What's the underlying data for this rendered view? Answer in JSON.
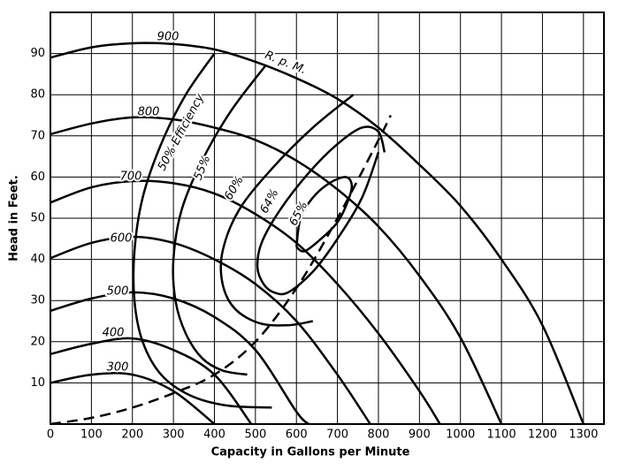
{
  "chart_data": {
    "type": "line",
    "xlabel": "Capacity in Gallons per Minute",
    "ylabel": "Head in Feet.",
    "xlim": [
      0,
      1350
    ],
    "ylim": [
      0,
      100
    ],
    "xticks": [
      0,
      100,
      200,
      300,
      400,
      500,
      600,
      700,
      800,
      900,
      1000,
      1100,
      1200,
      1300
    ],
    "yticks": [
      10,
      20,
      30,
      40,
      50,
      60,
      70,
      80,
      90
    ],
    "grid": true,
    "annotation": "R. p. M.",
    "series": [
      {
        "name": "900",
        "color": "#000000",
        "x": [
          0,
          100,
          200,
          300,
          400,
          500,
          600,
          700,
          800,
          900,
          1000,
          1100,
          1200,
          1300
        ],
        "values": [
          89,
          91.5,
          92.5,
          92.3,
          91,
          88,
          84,
          79,
          72,
          63,
          53,
          40,
          24,
          0
        ]
      },
      {
        "name": "800",
        "color": "#000000",
        "x": [
          0,
          100,
          200,
          300,
          400,
          500,
          600,
          700,
          800,
          900,
          1000,
          1100
        ],
        "values": [
          70.4,
          73,
          74.5,
          74,
          72,
          69,
          64,
          57,
          48,
          36,
          21,
          0
        ]
      },
      {
        "name": "700",
        "color": "#000000",
        "x": [
          0,
          100,
          200,
          300,
          400,
          500,
          600,
          700,
          800,
          900,
          950
        ],
        "values": [
          53.8,
          57.5,
          59,
          58.5,
          56,
          51,
          44,
          34,
          22,
          8,
          0
        ]
      },
      {
        "name": "600",
        "color": "#000000",
        "x": [
          0,
          100,
          200,
          300,
          400,
          500,
          600,
          700,
          780
        ],
        "values": [
          40.3,
          44,
          45.5,
          44,
          40,
          34,
          25,
          12,
          0
        ]
      },
      {
        "name": "500",
        "color": "#000000",
        "x": [
          0,
          100,
          200,
          300,
          400,
          500,
          600,
          630
        ],
        "values": [
          27.5,
          30.5,
          32,
          30.5,
          26,
          18,
          3,
          0
        ]
      },
      {
        "name": "400",
        "color": "#000000",
        "x": [
          0,
          100,
          200,
          300,
          400,
          490
        ],
        "values": [
          17,
          19.5,
          20.8,
          18,
          12,
          0
        ]
      },
      {
        "name": "300",
        "color": "#000000",
        "x": [
          0,
          100,
          200,
          300,
          400
        ],
        "values": [
          10,
          12,
          12,
          8,
          0
        ]
      },
      {
        "name": "50% Efficiency",
        "color": "#000000",
        "x": [
          400,
          330,
          270,
          225,
          205,
          205,
          225,
          270,
          340,
          430,
          540
        ],
        "values": [
          90,
          80,
          68,
          55,
          42,
          30,
          20,
          12,
          7,
          4.5,
          4
        ]
      },
      {
        "name": "55%",
        "color": "#000000",
        "x": [
          524,
          440,
          370,
          320,
          300,
          305,
          330,
          370,
          420,
          480
        ],
        "values": [
          87,
          76,
          64,
          52,
          40,
          30,
          22,
          16,
          13,
          12
        ]
      },
      {
        "name": "60%",
        "color": "#000000",
        "x": [
          739,
          640,
          540,
          460,
          420,
          420,
          450,
          510,
          580,
          640
        ],
        "values": [
          80,
          72,
          62,
          52,
          42,
          34,
          28,
          24.5,
          24,
          25
        ]
      },
      {
        "name": "64%",
        "color": "#000000",
        "x": [
          815,
          800,
          760,
          700,
          630,
          560,
          515,
          505,
          520,
          545,
          580,
          640,
          700,
          760,
          800
        ],
        "values": [
          66,
          71,
          72,
          68,
          61,
          52,
          44,
          38,
          34,
          32,
          32,
          37,
          45,
          55,
          66
        ]
      },
      {
        "name": "65%",
        "color": "#000000",
        "x": [
          600,
          610,
          640,
          680,
          720,
          735,
          725,
          700,
          660,
          620,
          600
        ],
        "values": [
          43,
          50,
          55,
          58.5,
          60,
          58,
          54,
          49,
          45,
          42,
          43
        ]
      },
      {
        "name": null,
        "color": "#000000",
        "dashed": true,
        "x": [
          0,
          100,
          200,
          300,
          400,
          500,
          600,
          700,
          800,
          830
        ],
        "values": [
          0,
          1.5,
          4,
          7.5,
          12,
          20,
          33,
          50,
          69,
          75
        ]
      }
    ]
  }
}
